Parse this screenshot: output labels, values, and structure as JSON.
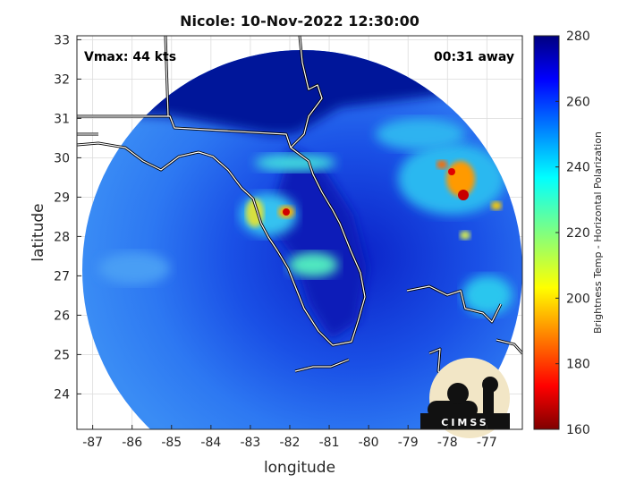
{
  "chart_data": {
    "type": "heatmap",
    "title": "Nicole: 10-Nov-2022 12:30:00",
    "xlabel": "longitude",
    "ylabel": "latitude",
    "xlim": [
      -87.4,
      -76.1
    ],
    "ylim": [
      23.1,
      33.1
    ],
    "xticks": [
      "-87",
      "-86",
      "-85",
      "-84",
      "-83",
      "-82",
      "-81",
      "-80",
      "-79",
      "-78",
      "-77"
    ],
    "yticks": [
      "24",
      "25",
      "26",
      "27",
      "28",
      "29",
      "30",
      "31",
      "32",
      "33"
    ],
    "colorbar": {
      "label": "Brightness Temp - Horizontal Polarization",
      "range": [
        160,
        280
      ],
      "ticks": [
        "160",
        "180",
        "200",
        "220",
        "240",
        "260",
        "280"
      ]
    },
    "annotations": {
      "vmax": "Vmax: 44 kts",
      "away": "00:31 away"
    },
    "features": [
      {
        "lon": -82.0,
        "lat": 28.6,
        "value": 178
      },
      {
        "lon": -82.8,
        "lat": 28.5,
        "value": 205
      },
      {
        "lon": -81.4,
        "lat": 26.8,
        "value": 228
      },
      {
        "lon": -81.3,
        "lat": 29.8,
        "value": 225
      },
      {
        "lon": -77.8,
        "lat": 29.0,
        "value": 180
      },
      {
        "lon": -78.3,
        "lat": 29.8,
        "value": 195
      },
      {
        "lon": -77.1,
        "lat": 28.7,
        "value": 205
      },
      {
        "lon": -77.8,
        "lat": 28.2,
        "value": 210
      }
    ],
    "grid": true
  },
  "logo": {
    "text": "CIMSS"
  }
}
